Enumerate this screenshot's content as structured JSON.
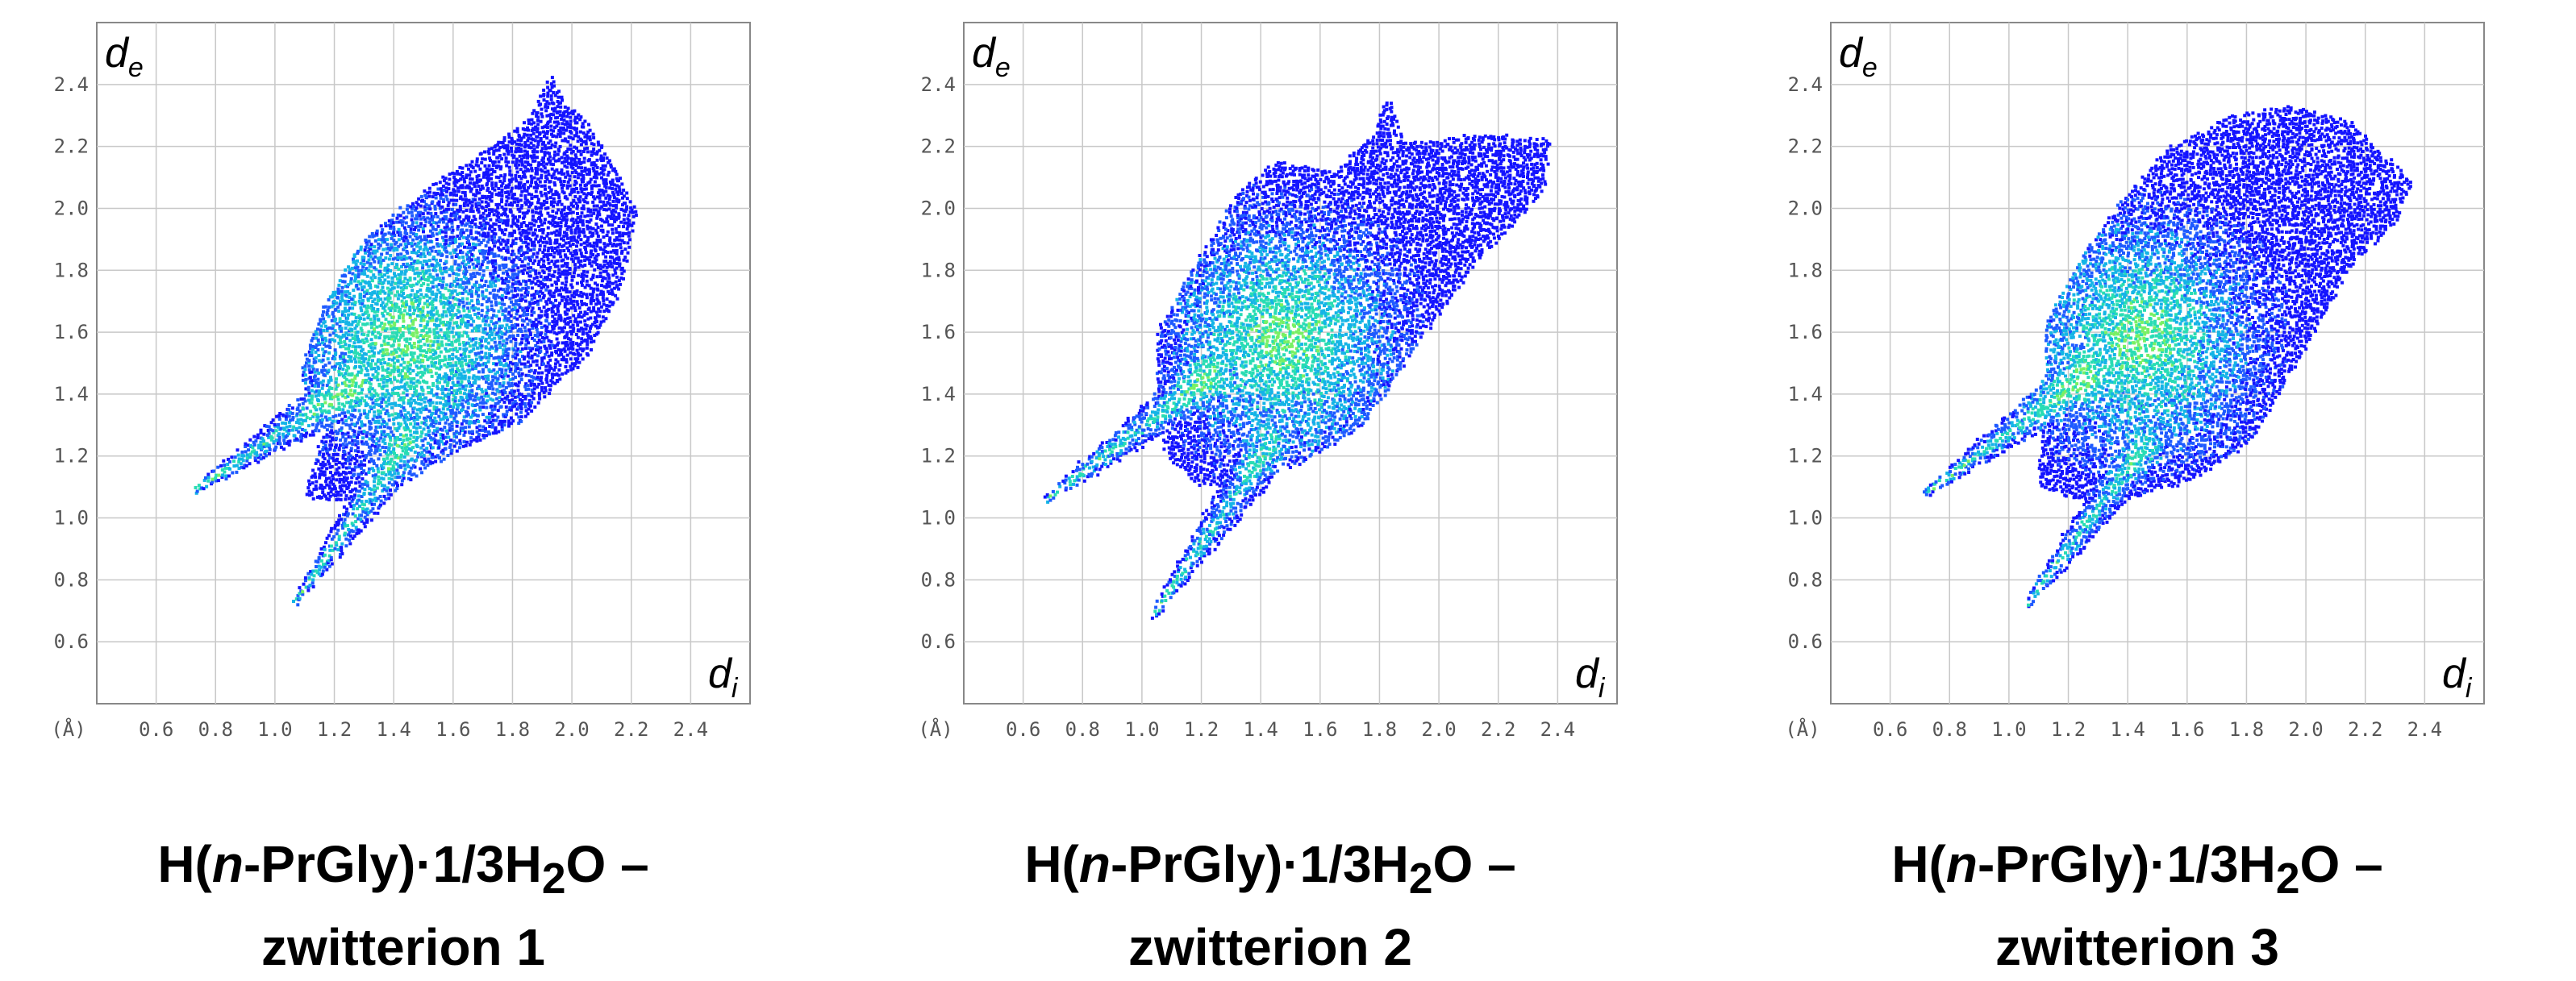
{
  "chart_data": [
    {
      "type": "heatmap",
      "caption": {
        "pre": "H(",
        "italic": "n",
        "mid": "-PrGly)·1/3H",
        "sub": "2",
        "post": "O –",
        "line2": "zwitterion 1"
      },
      "xlabel": {
        "main": "d",
        "sub": "i"
      },
      "ylabel": {
        "main": "d",
        "sub": "e"
      },
      "unit_label": "(Å)",
      "xlim": [
        0.4,
        2.6
      ],
      "ylim": [
        0.4,
        2.6
      ],
      "x_ticks": [
        0.6,
        0.8,
        1.0,
        1.2,
        1.4,
        1.6,
        1.8,
        2.0,
        2.2,
        2.4
      ],
      "y_ticks": [
        0.6,
        0.8,
        1.0,
        1.2,
        1.4,
        1.6,
        1.8,
        2.0,
        2.2,
        2.4
      ],
      "tick_labels": [
        "0.6",
        "0.8",
        "1.0",
        "1.2",
        "1.4",
        "1.6",
        "1.8",
        "2.0",
        "2.2",
        "2.4"
      ],
      "grid": true,
      "colormap": [
        "#1414ff",
        "#1e5aff",
        "#14b4e6",
        "#28dcb4",
        "#78f064"
      ],
      "spikes": [
        {
          "tip": [
            0.73,
            1.09
          ],
          "end": [
            1.25,
            1.42
          ]
        },
        {
          "tip": [
            1.07,
            0.73
          ],
          "end": [
            1.45,
            1.25
          ]
        }
      ],
      "outline": [
        [
          1.1,
          1.06
        ],
        [
          1.17,
          1.3
        ],
        [
          1.08,
          1.46
        ],
        [
          1.16,
          1.68
        ],
        [
          1.3,
          1.9
        ],
        [
          1.45,
          2.02
        ],
        [
          1.65,
          2.15
        ],
        [
          1.85,
          2.28
        ],
        [
          1.93,
          2.43
        ],
        [
          1.97,
          2.35
        ],
        [
          2.05,
          2.28
        ],
        [
          2.15,
          2.12
        ],
        [
          2.22,
          1.98
        ],
        [
          2.16,
          1.72
        ],
        [
          2.05,
          1.52
        ],
        [
          1.82,
          1.3
        ],
        [
          1.62,
          1.22
        ],
        [
          1.45,
          1.12
        ],
        [
          1.28,
          1.05
        ]
      ],
      "fingerprint_span": {
        "di": [
          0.73,
          2.22
        ],
        "de": [
          0.73,
          2.43
        ]
      },
      "hot_center": [
        1.45,
        1.58
      ]
    },
    {
      "type": "heatmap",
      "caption": {
        "pre": "H(",
        "italic": "n",
        "mid": "-PrGly)·1/3H",
        "sub": "2",
        "post": "O –",
        "line2": "zwitterion 2"
      },
      "xlabel": {
        "main": "d",
        "sub": "i"
      },
      "ylabel": {
        "main": "d",
        "sub": "e"
      },
      "unit_label": "(Å)",
      "xlim": [
        0.4,
        2.6
      ],
      "ylim": [
        0.4,
        2.6
      ],
      "x_ticks": [
        0.6,
        0.8,
        1.0,
        1.2,
        1.4,
        1.6,
        1.8,
        2.0,
        2.2,
        2.4
      ],
      "y_ticks": [
        0.6,
        0.8,
        1.0,
        1.2,
        1.4,
        1.6,
        1.8,
        2.0,
        2.2,
        2.4
      ],
      "tick_labels": [
        "0.6",
        "0.8",
        "1.0",
        "1.2",
        "1.4",
        "1.6",
        "1.8",
        "2.0",
        "2.2",
        "2.4"
      ],
      "grid": true,
      "colormap": [
        "#1414ff",
        "#1e5aff",
        "#14b4e6",
        "#28dcb4",
        "#78f064"
      ],
      "spikes": [
        {
          "tip": [
            0.68,
            1.06
          ],
          "end": [
            1.22,
            1.45
          ]
        },
        {
          "tip": [
            1.04,
            0.69
          ],
          "end": [
            1.42,
            1.22
          ]
        }
      ],
      "outline": [
        [
          1.08,
          1.2
        ],
        [
          1.05,
          1.42
        ],
        [
          1.05,
          1.6
        ],
        [
          1.18,
          1.82
        ],
        [
          1.32,
          2.05
        ],
        [
          1.45,
          2.15
        ],
        [
          1.65,
          2.12
        ],
        [
          1.78,
          2.25
        ],
        [
          1.83,
          2.37
        ],
        [
          1.88,
          2.22
        ],
        [
          2.0,
          2.22
        ],
        [
          2.15,
          2.24
        ],
        [
          2.38,
          2.22
        ],
        [
          2.35,
          2.05
        ],
        [
          2.15,
          1.85
        ],
        [
          1.92,
          1.55
        ],
        [
          1.75,
          1.3
        ],
        [
          1.55,
          1.18
        ],
        [
          1.35,
          1.12
        ],
        [
          1.2,
          1.1
        ]
      ],
      "fingerprint_span": {
        "di": [
          0.68,
          2.38
        ],
        "de": [
          0.69,
          2.37
        ]
      },
      "hot_center": [
        1.48,
        1.58
      ]
    },
    {
      "type": "heatmap",
      "caption": {
        "pre": "H(",
        "italic": "n",
        "mid": "-PrGly)·1/3H",
        "sub": "2",
        "post": "O –",
        "line2": "zwitterion 3"
      },
      "xlabel": {
        "main": "d",
        "sub": "i"
      },
      "ylabel": {
        "main": "d",
        "sub": "e"
      },
      "unit_label": "(Å)",
      "xlim": [
        0.4,
        2.6
      ],
      "ylim": [
        0.4,
        2.6
      ],
      "x_ticks": [
        0.6,
        0.8,
        1.0,
        1.2,
        1.4,
        1.6,
        1.8,
        2.0,
        2.2,
        2.4
      ],
      "y_ticks": [
        0.6,
        0.8,
        1.0,
        1.2,
        1.4,
        1.6,
        1.8,
        2.0,
        2.2,
        2.4
      ],
      "tick_labels": [
        "0.6",
        "0.8",
        "1.0",
        "1.2",
        "1.4",
        "1.6",
        "1.8",
        "2.0",
        "2.2",
        "2.4"
      ],
      "grid": true,
      "colormap": [
        "#1414ff",
        "#1e5aff",
        "#14b4e6",
        "#28dcb4",
        "#78f064"
      ],
      "spikes": [
        {
          "tip": [
            0.72,
            1.08
          ],
          "end": [
            1.25,
            1.45
          ]
        },
        {
          "tip": [
            1.06,
            0.72
          ],
          "end": [
            1.45,
            1.22
          ]
        }
      ],
      "outline": [
        [
          1.1,
          1.1
        ],
        [
          1.12,
          1.4
        ],
        [
          1.12,
          1.62
        ],
        [
          1.25,
          1.85
        ],
        [
          1.4,
          2.05
        ],
        [
          1.55,
          2.2
        ],
        [
          1.75,
          2.3
        ],
        [
          1.95,
          2.33
        ],
        [
          2.15,
          2.28
        ],
        [
          2.36,
          2.08
        ],
        [
          2.3,
          1.95
        ],
        [
          2.15,
          1.8
        ],
        [
          2.0,
          1.55
        ],
        [
          1.82,
          1.25
        ],
        [
          1.62,
          1.12
        ],
        [
          1.4,
          1.06
        ],
        [
          1.22,
          1.06
        ]
      ],
      "fingerprint_span": {
        "di": [
          0.72,
          2.36
        ],
        "de": [
          0.72,
          2.33
        ]
      },
      "hot_center": [
        1.45,
        1.58
      ]
    }
  ]
}
